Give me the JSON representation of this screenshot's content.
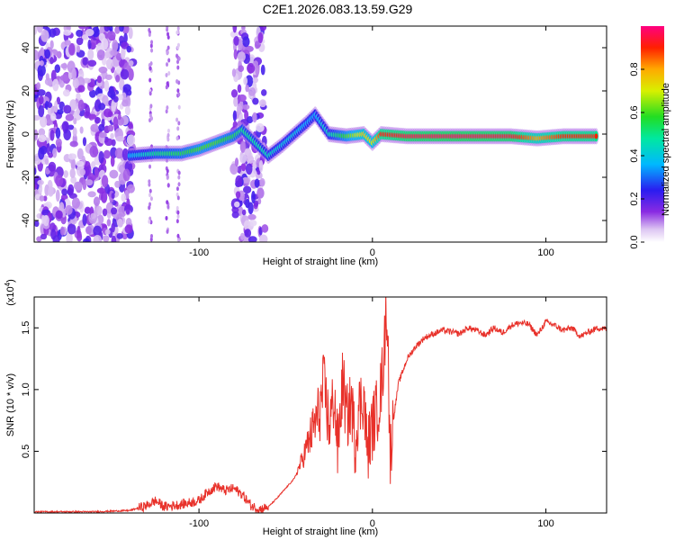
{
  "title": "C2E1.2026.083.13.59.G29",
  "chart_data": [
    {
      "type": "heatmap",
      "title": "C2E1.2026.083.13.59.G29",
      "xlabel": "Height of straight line (km)",
      "ylabel": "Frequency (Hz)",
      "xlim": [
        -195,
        135
      ],
      "ylim": [
        -50,
        50
      ],
      "xticks": [
        -100,
        0,
        100
      ],
      "xtick_labels": [
        "-100",
        "0",
        "100"
      ],
      "yticks": [
        -40,
        -20,
        0,
        20,
        40
      ],
      "ytick_labels": [
        "-40",
        "-20",
        "0",
        "20",
        "40"
      ],
      "colorbar": {
        "label": "Normalized spectral amplitude",
        "range": [
          0,
          1
        ],
        "ticks": [
          0.0,
          0.2,
          0.4,
          0.6,
          0.8
        ],
        "tick_labels": [
          "0.0",
          "0.2",
          "0.4",
          "0.6",
          "0.8"
        ]
      },
      "noise_regions_x": [
        [
          -195,
          -138
        ],
        [
          -80,
          -62
        ]
      ],
      "signal_track": [
        {
          "x": -140,
          "y": -10,
          "amp": 0.35
        },
        {
          "x": -125,
          "y": -9,
          "amp": 0.5
        },
        {
          "x": -110,
          "y": -9,
          "amp": 0.55
        },
        {
          "x": -100,
          "y": -7,
          "amp": 0.6
        },
        {
          "x": -90,
          "y": -4,
          "amp": 0.6
        },
        {
          "x": -80,
          "y": -1,
          "amp": 0.55
        },
        {
          "x": -75,
          "y": 2,
          "amp": 0.5
        },
        {
          "x": -60,
          "y": -10,
          "amp": 0.45
        },
        {
          "x": -52,
          "y": -5,
          "amp": 0.4
        },
        {
          "x": -45,
          "y": 0,
          "amp": 0.4
        },
        {
          "x": -38,
          "y": 5,
          "amp": 0.35
        },
        {
          "x": -33,
          "y": 9,
          "amp": 0.35
        },
        {
          "x": -25,
          "y": 0,
          "amp": 0.45
        },
        {
          "x": -15,
          "y": -1,
          "amp": 0.6
        },
        {
          "x": -5,
          "y": 0,
          "amp": 0.75
        },
        {
          "x": 0,
          "y": -4,
          "amp": 0.7
        },
        {
          "x": 5,
          "y": 0,
          "amp": 0.9
        },
        {
          "x": 20,
          "y": -1,
          "amp": 0.95
        },
        {
          "x": 50,
          "y": -1,
          "amp": 0.97
        },
        {
          "x": 80,
          "y": -1,
          "amp": 0.95
        },
        {
          "x": 95,
          "y": -2,
          "amp": 0.8
        },
        {
          "x": 110,
          "y": -1,
          "amp": 0.9
        },
        {
          "x": 130,
          "y": -1,
          "amp": 0.9
        }
      ]
    },
    {
      "type": "line",
      "xlabel": "Height of straight line (km)",
      "ylabel": "SNR (10 * v/v)",
      "y_multiplier_label": "(x10^4)",
      "y_multiplier_base": "(x10",
      "y_multiplier_exp": "4",
      "xlim": [
        -195,
        135
      ],
      "ylim": [
        0,
        1.75
      ],
      "xticks": [
        -100,
        0,
        100
      ],
      "xtick_labels": [
        "-100",
        "0",
        "100"
      ],
      "yticks": [
        0.5,
        1.0,
        1.5
      ],
      "ytick_labels": [
        "0.5",
        "1.0",
        "1.5"
      ],
      "series": [
        {
          "name": "SNR",
          "color": "#e8312a",
          "x": [
            -195,
            -180,
            -160,
            -140,
            -130,
            -125,
            -120,
            -110,
            -100,
            -95,
            -90,
            -85,
            -80,
            -75,
            -70,
            -65,
            -60,
            -55,
            -50,
            -45,
            -40,
            -35,
            -30,
            -28,
            -25,
            -22,
            -20,
            -17,
            -15,
            -12,
            -10,
            -8,
            -5,
            -3,
            0,
            3,
            5,
            7,
            8,
            9,
            10,
            12,
            15,
            20,
            25,
            30,
            35,
            40,
            45,
            50,
            55,
            60,
            65,
            70,
            75,
            80,
            85,
            90,
            95,
            100,
            105,
            110,
            115,
            120,
            125,
            130,
            135
          ],
          "values": [
            0.01,
            0.01,
            0.01,
            0.02,
            0.06,
            0.1,
            0.05,
            0.07,
            0.1,
            0.17,
            0.22,
            0.18,
            0.2,
            0.15,
            0.06,
            0.03,
            0.05,
            0.12,
            0.2,
            0.28,
            0.45,
            0.65,
            0.85,
            1.05,
            0.7,
            0.95,
            0.5,
            1.1,
            0.75,
            0.9,
            0.55,
            0.85,
            0.95,
            0.5,
            0.7,
            0.85,
            1.0,
            1.35,
            1.7,
            1.45,
            0.45,
            0.75,
            1.05,
            1.25,
            1.35,
            1.42,
            1.45,
            1.48,
            1.47,
            1.45,
            1.5,
            1.48,
            1.44,
            1.5,
            1.46,
            1.52,
            1.54,
            1.53,
            1.44,
            1.55,
            1.52,
            1.48,
            1.5,
            1.43,
            1.47,
            1.5,
            1.49
          ]
        }
      ]
    }
  ]
}
